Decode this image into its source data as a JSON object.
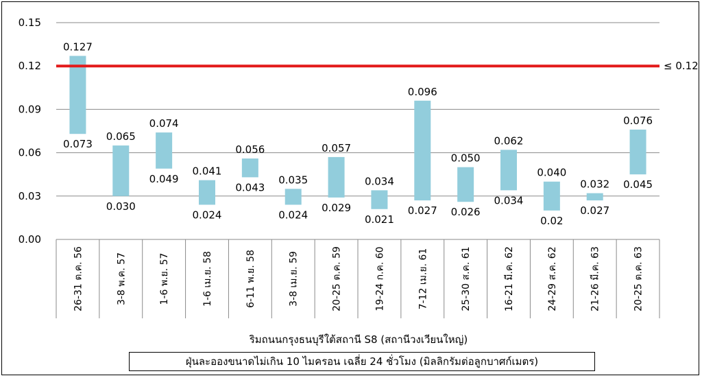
{
  "chart_data": {
    "type": "bar",
    "subtype": "floating-range",
    "categories": [
      "26-31 ต.ค. 56",
      "3-8 พ.ค. 57",
      "1-6 พ.ย. 57",
      "1-6 เม.ย. 58",
      "6-11 พ.ย. 58",
      "3-8 เม.ย. 59",
      "20-25 ต.ค. 59",
      "19-24 ก.ค. 60",
      "7-12 เม.ย. 61",
      "25-30 ส.ค. 61",
      "16-21 มี.ค. 62",
      "24-29 ส.ค. 62",
      "21-26 มี.ค. 63",
      "20-25 ต.ค. 63"
    ],
    "max_values": [
      0.127,
      0.065,
      0.074,
      0.041,
      0.056,
      0.035,
      0.057,
      0.034,
      0.096,
      0.05,
      0.062,
      0.04,
      0.032,
      0.076
    ],
    "min_values": [
      0.073,
      0.03,
      0.049,
      0.024,
      0.043,
      0.024,
      0.029,
      0.021,
      0.027,
      0.026,
      0.034,
      0.02,
      0.027,
      0.045
    ],
    "max_labels": [
      "0.127",
      "0.065",
      "0.074",
      "0.041",
      "0.056",
      "0.035",
      "0.057",
      "0.034",
      "0.096",
      "0.050",
      "0.062",
      "0.040",
      "0.032",
      "0.076"
    ],
    "min_labels": [
      "0.073",
      "0.030",
      "0.049",
      "0.024",
      "0.043",
      "0.024",
      "0.029",
      "0.021",
      "0.027",
      "0.026",
      "0.034",
      "0.02",
      "0.027",
      "0.045"
    ],
    "ylim": [
      0,
      0.15
    ],
    "yticks": [
      "0.00",
      "0.03",
      "0.06",
      "0.09",
      "0.12",
      "0.15"
    ],
    "reference_line": {
      "value": 0.12,
      "label": "≤ 0.12",
      "color": "#e31b1b"
    },
    "bar_color": "#92cddc",
    "grid": true,
    "xlabel": "ริมถนนกรุงธนบุรีใต้สถานี S8 (สถานีวงเวียนใหญ่)",
    "legend_text": "ฝุ่นละอองขนาดไม่เกิน 10 ไมครอน เฉลี่ย 24 ชั่วโมง (มิลลิกรัมต่อลูกบาศก์เมตร)"
  }
}
